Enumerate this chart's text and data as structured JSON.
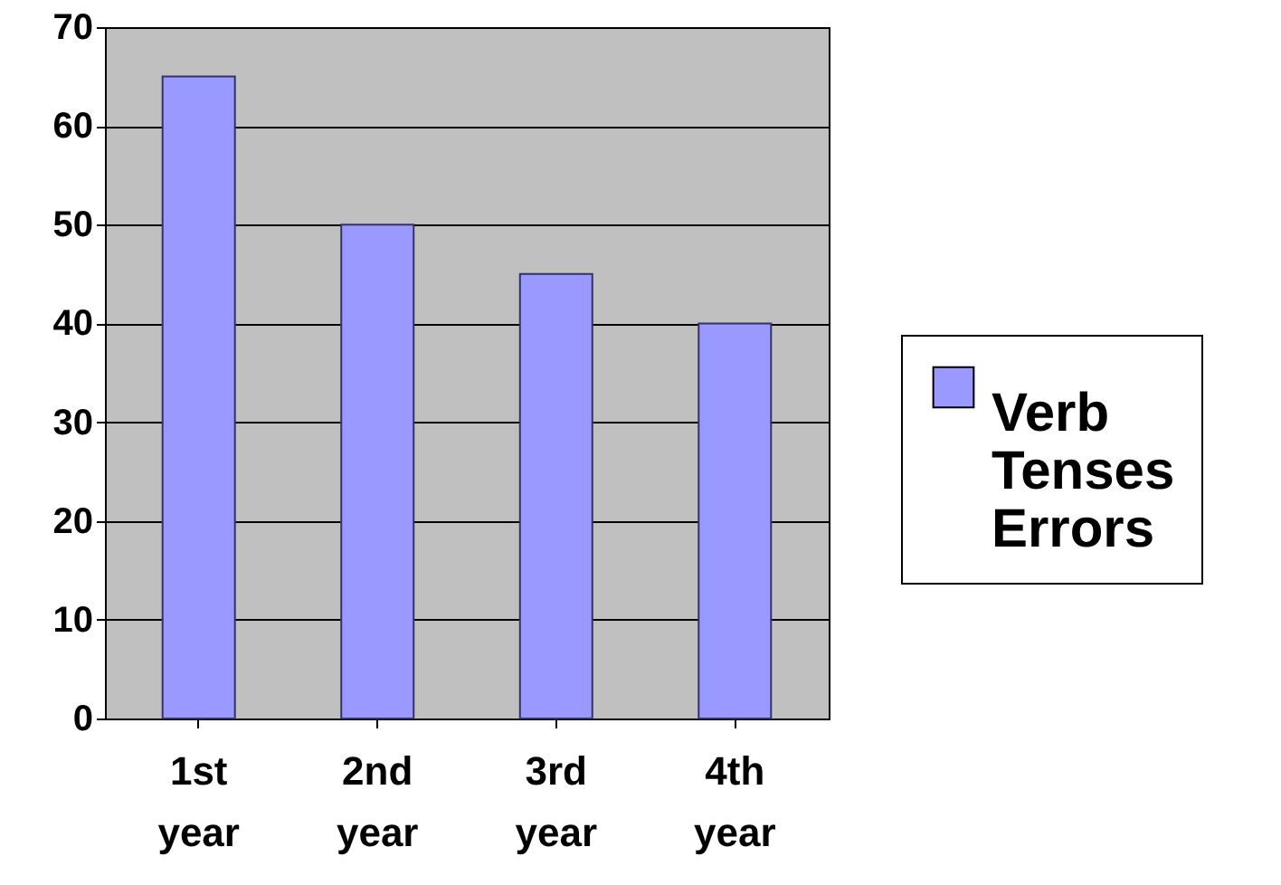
{
  "chart_data": {
    "type": "bar",
    "categories": [
      "1st year",
      "2nd year",
      "3rd year",
      "4th year"
    ],
    "series": [
      {
        "name": "Verb Tenses Errors",
        "color": "#9999ff",
        "values": [
          65,
          50,
          45,
          40
        ]
      }
    ],
    "ylim": [
      0,
      70
    ],
    "yticks": [
      0,
      10,
      20,
      30,
      40,
      50,
      60,
      70
    ],
    "grid": "y",
    "legend": "right"
  }
}
